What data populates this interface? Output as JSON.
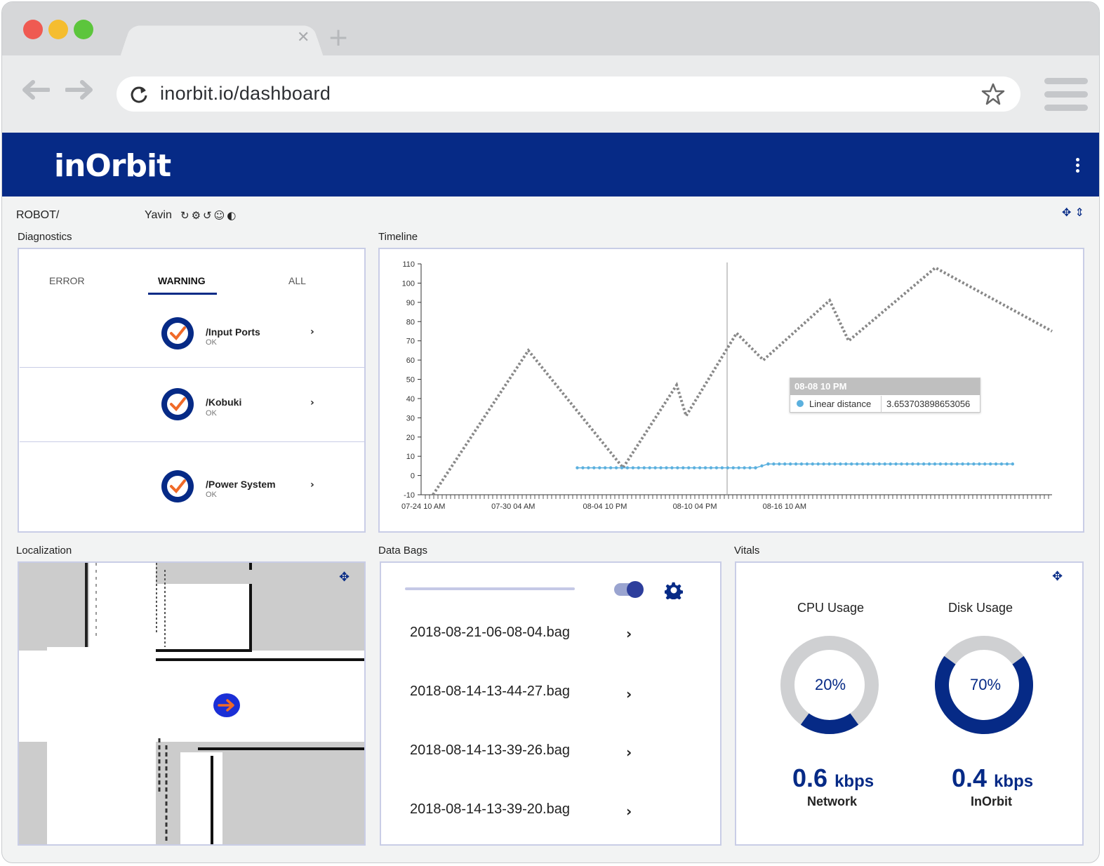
{
  "browser": {
    "url": "inorbit.io/dashboard",
    "colors": {
      "close": "#ef5a52",
      "minimize": "#f5bd2f",
      "maximize": "#5cc53c"
    }
  },
  "app": {
    "logo_text": "inOrbit",
    "brand_color": "#062a86",
    "robot_label": "ROBOT/",
    "robot_name": "Yavin",
    "robot_icons": "↻⚙↺☺◐"
  },
  "diagnostics": {
    "title": "Diagnostics",
    "tabs": [
      "ERROR",
      "WARNING",
      "ALL"
    ],
    "active_tab": "WARNING",
    "items": [
      {
        "name": "/Input Ports",
        "status": "OK"
      },
      {
        "name": "/Kobuki",
        "status": "OK"
      },
      {
        "name": "/Power System",
        "status": "OK"
      }
    ]
  },
  "timeline": {
    "title": "Timeline",
    "tooltip_time": "08-08 10 PM",
    "tooltip_series": "Linear distance",
    "tooltip_value": "3.653703898653056"
  },
  "chart_data": {
    "type": "line",
    "ylim": [
      -10,
      110
    ],
    "y_ticks": [
      110,
      100,
      90,
      80,
      70,
      60,
      50,
      40,
      30,
      20,
      10,
      0,
      -10
    ],
    "x_tick_labels": [
      "07-24 10 AM",
      "07-30 04 AM",
      "08-04 10 PM",
      "08-10 04 PM",
      "08-16 10 AM"
    ],
    "x_range_days": [
      0,
      25
    ],
    "series": [
      {
        "color": "#888888",
        "style": "dotted",
        "points": [
          [
            0.75,
            -10
          ],
          [
            6.8,
            65
          ],
          [
            12.8,
            4
          ],
          [
            16.2,
            47
          ],
          [
            16.8,
            31
          ],
          [
            20.0,
            74
          ],
          [
            21.7,
            60
          ],
          [
            25.9,
            91
          ],
          [
            27.1,
            70
          ],
          [
            32.6,
            108
          ],
          [
            40.0,
            75
          ]
        ]
      },
      {
        "name": "Linear distance",
        "color": "#5bb0de",
        "style": "dotted-markers",
        "points": [
          [
            9.9,
            4
          ],
          [
            21.2,
            4
          ],
          [
            22.0,
            6
          ],
          [
            37.5,
            6
          ]
        ]
      }
    ]
  },
  "localization": {
    "title": "Localization"
  },
  "data_bags": {
    "title": "Data Bags",
    "files": [
      "2018-08-21-06-08-04.bag",
      "2018-08-14-13-44-27.bag",
      "2018-08-14-13-39-26.bag",
      "2018-08-14-13-39-20.bag"
    ]
  },
  "vitals": {
    "title": "Vitals",
    "cpu": {
      "label": "CPU Usage",
      "value": "20%",
      "fraction": 0.2
    },
    "disk": {
      "label": "Disk Usage",
      "value": "70%",
      "fraction": 0.7
    },
    "network": {
      "value": "0.6",
      "unit": "kbps",
      "label": "Network"
    },
    "inorbit": {
      "value": "0.4",
      "unit": "kbps",
      "label": "InOrbit"
    }
  }
}
